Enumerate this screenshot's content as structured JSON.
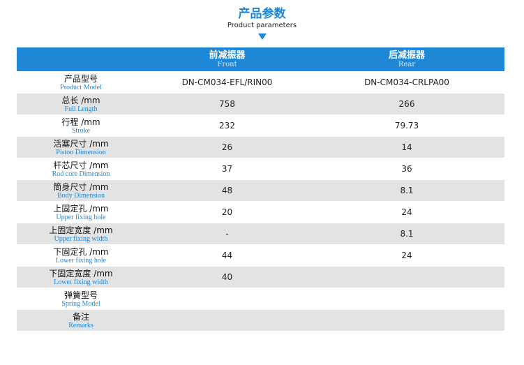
{
  "title": {
    "cn": "产品参数",
    "en": "Product parameters"
  },
  "header": {
    "col2": {
      "cn": "前减振器",
      "en": "Front"
    },
    "col3": {
      "cn": "后减振器",
      "en": "Rear"
    }
  },
  "rows": [
    {
      "cn": "产品型号",
      "en": "Product Model",
      "front": "DN-CM034-EFL/RIN00",
      "rear": "DN-CM034-CRLPA00"
    },
    {
      "cn": "总长 /mm",
      "en": "Full Length",
      "front": "758",
      "rear": "266"
    },
    {
      "cn": "行程 /mm",
      "en": "Stroke",
      "front": "232",
      "rear": "79.73"
    },
    {
      "cn": "活塞尺寸 /mm",
      "en": "Piston Dimension",
      "front": "26",
      "rear": "14"
    },
    {
      "cn": "杆芯尺寸 /mm",
      "en": "Rod core Dimension",
      "front": "37",
      "rear": "36"
    },
    {
      "cn": "筒身尺寸 /mm",
      "en": "Body Dimension",
      "front": "48",
      "rear": "8.1"
    },
    {
      "cn": "上固定孔 /mm",
      "en": "Upper fixing hole",
      "front": "20",
      "rear": "24"
    },
    {
      "cn": "上固定宽度 /mm",
      "en": "Upper fixing width",
      "front": "-",
      "rear": "8.1"
    },
    {
      "cn": "下固定孔 /mm",
      "en": "Lower fixing hole",
      "front": "44",
      "rear": "24"
    },
    {
      "cn": "下固定宽度 /mm",
      "en": "Lower fixing width",
      "front": "40",
      "rear": ""
    },
    {
      "cn": "弹簧型号",
      "en": "Spring Model",
      "front": "",
      "rear": ""
    },
    {
      "cn": "备注",
      "en": "Remarks",
      "front": "",
      "rear": ""
    }
  ]
}
